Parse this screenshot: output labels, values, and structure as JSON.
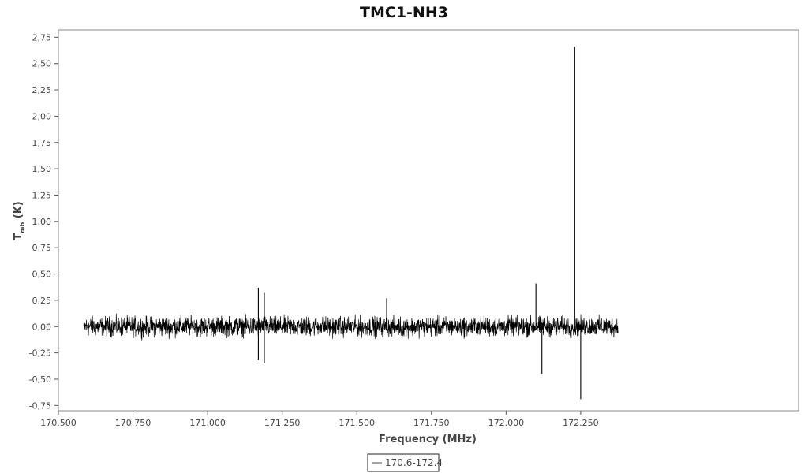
{
  "chart_data": {
    "type": "line",
    "title": "TMC1-NH3",
    "xlabel": "Frequency (MHz)",
    "ylabel": {
      "main": "T",
      "subscript": "mb",
      "unit": " (K)"
    },
    "xlim": [
      170.5,
      172.98
    ],
    "ylim": [
      -0.8,
      2.82
    ],
    "xticks": [
      170.5,
      170.75,
      171.0,
      171.25,
      171.5,
      171.75,
      172.0,
      172.25
    ],
    "xtick_labels": [
      "170.500",
      "170.750",
      "171.000",
      "171.250",
      "171.500",
      "171.750",
      "172.000",
      "172.250"
    ],
    "yticks": [
      -0.75,
      -0.5,
      -0.25,
      0.0,
      0.25,
      0.5,
      0.75,
      1.0,
      1.25,
      1.5,
      1.75,
      2.0,
      2.25,
      2.5,
      2.75
    ],
    "ytick_labels": [
      "-0,75",
      "-0,50",
      "-0,25",
      "0,00",
      "0,25",
      "0,50",
      "0,75",
      "1,00",
      "1,25",
      "1,50",
      "1,75",
      "2,00",
      "2,25",
      "2,50",
      "2,75"
    ],
    "grid": false,
    "legend_position": "bottom-center",
    "series": [
      {
        "name": "170.6-172.4",
        "color": "#000000",
        "x_range": [
          170.585,
          172.375
        ],
        "baseline": 0.0,
        "noise_amplitude": 0.12,
        "features": [
          {
            "x": 171.17,
            "y": 0.37
          },
          {
            "x": 171.17,
            "y": -0.32
          },
          {
            "x": 171.19,
            "y": 0.32
          },
          {
            "x": 171.19,
            "y": -0.35
          },
          {
            "x": 171.6,
            "y": 0.27
          },
          {
            "x": 172.1,
            "y": 0.41
          },
          {
            "x": 172.12,
            "y": -0.45
          },
          {
            "x": 172.23,
            "y": 2.66
          },
          {
            "x": 172.25,
            "y": -0.69
          }
        ]
      }
    ]
  }
}
